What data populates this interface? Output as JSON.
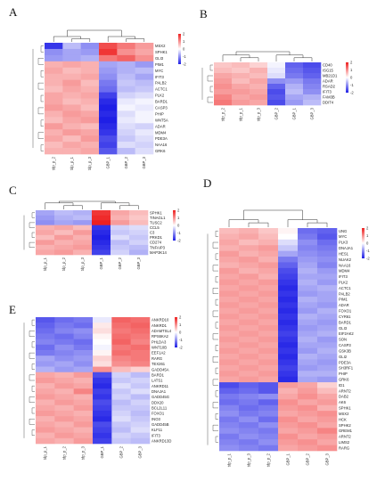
{
  "chart_data": [
    {
      "type": "heatmap",
      "panel_label": "A",
      "samples": [
        "tdp_p_2",
        "tdp_p_1",
        "tdp_p_3",
        "GBP_1",
        "GBP_2",
        "GBP_3"
      ],
      "genes": [
        "MSX2",
        "SPHK1",
        "GLI3",
        "PIM1",
        "MYC",
        "IFIT3",
        "PALB2",
        "ACTC1",
        "PLK2",
        "BARD1",
        "CASP3",
        "PHIP",
        "WNT5A",
        "ADAR",
        "MDM4",
        "PDE3A",
        "NAA16",
        "GRK6"
      ],
      "values": [
        [
          -1.8,
          -0.6,
          -1.0,
          1.6,
          1.2,
          0.9
        ],
        [
          -1.0,
          -0.8,
          -0.9,
          1.8,
          1.0,
          0.8
        ],
        [
          -0.9,
          -0.8,
          -0.7,
          1.2,
          1.4,
          1.0
        ],
        [
          0.7,
          0.8,
          0.7,
          -0.8,
          -0.7,
          -0.9
        ],
        [
          0.8,
          0.6,
          0.7,
          -0.9,
          -0.7,
          -0.6
        ],
        [
          0.7,
          0.7,
          0.8,
          -1.0,
          -0.6,
          -0.8
        ],
        [
          0.7,
          0.9,
          0.6,
          -1.2,
          -0.5,
          -0.6
        ],
        [
          0.6,
          0.8,
          0.7,
          -1.3,
          -0.6,
          -0.5
        ],
        [
          0.8,
          0.7,
          0.8,
          -1.7,
          -0.4,
          -0.3
        ],
        [
          0.8,
          0.6,
          0.7,
          -1.9,
          -0.2,
          -0.1
        ],
        [
          0.9,
          0.8,
          0.6,
          -2.0,
          -0.1,
          -0.2
        ],
        [
          0.7,
          0.9,
          0.8,
          -1.9,
          -0.3,
          -0.1
        ],
        [
          0.6,
          0.8,
          0.9,
          -2.0,
          -0.2,
          -0.1
        ],
        [
          0.9,
          0.7,
          0.6,
          -1.9,
          -0.3,
          -0.4
        ],
        [
          0.7,
          0.9,
          0.8,
          -1.8,
          -0.4,
          -0.2
        ],
        [
          0.8,
          0.6,
          0.9,
          -1.6,
          -0.5,
          -0.3
        ],
        [
          0.6,
          0.8,
          0.7,
          -1.7,
          -0.3,
          -0.4
        ],
        [
          0.7,
          0.7,
          0.8,
          -1.5,
          -0.6,
          -0.3
        ]
      ],
      "color_scale": {
        "min": -2,
        "max": 2,
        "ticks": [
          2,
          1,
          0,
          -1,
          -2
        ],
        "low": "#1f1fe6",
        "mid": "#ffffff",
        "high": "#ee2020"
      }
    },
    {
      "type": "heatmap",
      "panel_label": "B",
      "samples": [
        "tdp_p_2",
        "tdp_p_1",
        "tdp_p_3",
        "GBP_2",
        "GBP_1",
        "GBP_3"
      ],
      "genes": [
        "CD40",
        "ISG15",
        "MB21D1",
        "ADAR",
        "RSAD2",
        "IFIT3",
        "FAM3B",
        "DDIT4"
      ],
      "values": [
        [
          0.5,
          0.6,
          0.4,
          -0.1,
          -1.4,
          -1.6
        ],
        [
          0.6,
          0.5,
          0.7,
          -0.2,
          -1.3,
          -1.5
        ],
        [
          0.8,
          0.7,
          0.6,
          -0.3,
          -1.2,
          -1.4
        ],
        [
          0.9,
          0.6,
          0.8,
          -1.0,
          -0.9,
          -1.2
        ],
        [
          1.0,
          0.8,
          0.7,
          -1.4,
          -0.7,
          -1.1
        ],
        [
          0.9,
          0.9,
          0.8,
          -1.6,
          -0.6,
          -1.0
        ],
        [
          1.1,
          0.8,
          0.9,
          -1.5,
          -0.8,
          -0.7
        ],
        [
          1.2,
          0.9,
          0.8,
          -1.6,
          -0.9,
          -0.6
        ]
      ],
      "color_scale": {
        "min": -2,
        "max": 2,
        "ticks": [
          2,
          1,
          0,
          -1,
          -2
        ],
        "low": "#1f1fe6",
        "mid": "#ffffff",
        "high": "#ee2020"
      }
    },
    {
      "type": "heatmap",
      "panel_label": "C",
      "samples": [
        "tdp_p_1",
        "tdp_p_2",
        "tdp_p_3",
        "GBP_1",
        "GBP_2",
        "GBP_3"
      ],
      "genes": [
        "SPHK1",
        "TINAGL1",
        "TUSC2",
        "CCL5",
        "C3",
        "PRKD1",
        "CD274",
        "TNFAIP3",
        "MAP3K14"
      ],
      "values": [
        [
          -0.8,
          -0.6,
          -0.7,
          1.8,
          0.8,
          0.6
        ],
        [
          -0.9,
          -0.7,
          -0.6,
          1.9,
          0.7,
          0.5
        ],
        [
          -1.0,
          -0.8,
          -0.9,
          2.0,
          0.9,
          0.6
        ],
        [
          0.7,
          0.8,
          0.6,
          -1.8,
          -0.4,
          -0.3
        ],
        [
          0.8,
          0.6,
          0.9,
          -1.9,
          -0.5,
          -0.4
        ],
        [
          0.6,
          0.9,
          0.7,
          -2.0,
          -0.3,
          -0.5
        ],
        [
          0.9,
          0.7,
          0.8,
          -1.9,
          -0.6,
          -0.4
        ],
        [
          0.7,
          0.8,
          0.9,
          -1.8,
          -0.5,
          -0.6
        ],
        [
          0.8,
          0.9,
          0.7,
          -1.7,
          -0.4,
          -0.7
        ]
      ],
      "color_scale": {
        "min": -2,
        "max": 2,
        "ticks": [
          2,
          1,
          0,
          -1,
          -2
        ],
        "low": "#1f1fe6",
        "mid": "#ffffff",
        "high": "#ee2020"
      }
    },
    {
      "type": "heatmap",
      "panel_label": "D",
      "samples": [
        "tdp_p_1",
        "tdp_p_3",
        "tdp_p_2",
        "GBP_1",
        "GBP_2",
        "GBP_3"
      ],
      "genes": [
        "UNG",
        "MYC",
        "PLK3",
        "DNAJA1",
        "HES1",
        "NUAK2",
        "NAA16",
        "MDM4",
        "IFIT3",
        "PLK2",
        "ACTC1",
        "PALB2",
        "PIM1",
        "ADAR",
        "FOXO1",
        "CYR61",
        "BARD1",
        "GLI3",
        "EIF2AK2",
        "SON",
        "CASP3",
        "GSK3B",
        "GLI2",
        "PDE3A",
        "SH3RF1",
        "PHIP",
        "GRK6",
        "ID1",
        "ARNT2",
        "DAB2",
        "AK6",
        "SPHK1",
        "MSX2",
        "HCK",
        "SPHK2",
        "GREM1",
        "ARNT2",
        "LIMS2",
        "RARG"
      ],
      "values": [
        [
          0.6,
          0.7,
          0.5,
          0.1,
          -1.3,
          -1.4
        ],
        [
          0.7,
          0.8,
          0.6,
          0.0,
          -1.2,
          -1.5
        ],
        [
          0.8,
          0.6,
          0.7,
          -0.3,
          -1.0,
          -1.3
        ],
        [
          0.7,
          0.8,
          0.9,
          -0.5,
          -1.1,
          -1.2
        ],
        [
          0.9,
          0.7,
          0.8,
          -0.8,
          -1.0,
          -1.1
        ],
        [
          0.8,
          0.9,
          0.7,
          -1.2,
          -0.9,
          -1.0
        ],
        [
          0.7,
          0.8,
          0.9,
          -1.4,
          -0.8,
          -1.1
        ],
        [
          0.9,
          0.7,
          0.8,
          -1.6,
          -0.7,
          -0.9
        ],
        [
          0.8,
          0.9,
          0.7,
          -1.7,
          -0.8,
          -0.8
        ],
        [
          0.9,
          0.8,
          0.9,
          -1.8,
          -0.7,
          -0.9
        ],
        [
          0.8,
          0.9,
          0.8,
          -1.9,
          -0.8,
          -0.7
        ],
        [
          0.9,
          0.8,
          0.9,
          -1.8,
          -0.9,
          -0.8
        ],
        [
          0.8,
          0.9,
          0.8,
          -1.9,
          -0.7,
          -0.8
        ],
        [
          0.9,
          0.8,
          0.9,
          -1.8,
          -0.8,
          -0.9
        ],
        [
          0.8,
          0.9,
          0.8,
          -1.9,
          -0.9,
          -0.7
        ],
        [
          0.9,
          0.8,
          0.9,
          -1.8,
          -0.7,
          -0.8
        ],
        [
          0.8,
          0.9,
          0.8,
          -1.9,
          -0.8,
          -0.9
        ],
        [
          0.9,
          0.8,
          0.9,
          -1.8,
          -0.9,
          -0.8
        ],
        [
          0.8,
          0.9,
          0.8,
          -1.7,
          -0.8,
          -0.7
        ],
        [
          0.9,
          0.8,
          0.9,
          -1.8,
          -0.7,
          -0.9
        ],
        [
          0.8,
          0.9,
          0.8,
          -1.9,
          -0.8,
          -0.8
        ],
        [
          0.9,
          0.8,
          0.9,
          -1.8,
          -0.9,
          -0.7
        ],
        [
          0.8,
          0.9,
          0.8,
          -1.9,
          -0.7,
          -0.8
        ],
        [
          0.9,
          0.8,
          0.9,
          -1.8,
          -0.8,
          -0.9
        ],
        [
          0.8,
          0.9,
          0.8,
          -1.7,
          -0.9,
          -0.8
        ],
        [
          0.9,
          0.8,
          0.9,
          -1.8,
          -0.7,
          -0.7
        ],
        [
          0.8,
          0.9,
          0.8,
          -1.9,
          -0.8,
          -0.9
        ],
        [
          -1.6,
          -1.4,
          -1.5,
          0.9,
          0.8,
          0.4
        ],
        [
          -1.4,
          -1.3,
          -1.5,
          0.7,
          0.9,
          0.6
        ],
        [
          -1.2,
          -1.1,
          -1.0,
          0.8,
          1.0,
          0.8
        ],
        [
          -1.3,
          -1.2,
          -1.4,
          1.0,
          0.8,
          0.9
        ],
        [
          -1.1,
          -1.3,
          -1.2,
          0.9,
          1.0,
          0.7
        ],
        [
          -1.0,
          -1.2,
          -1.1,
          0.8,
          0.9,
          1.0
        ],
        [
          -1.2,
          -1.0,
          -1.3,
          1.0,
          0.8,
          0.9
        ],
        [
          -1.1,
          -1.2,
          -1.0,
          0.9,
          1.0,
          0.8
        ],
        [
          -1.0,
          -1.1,
          -1.2,
          0.8,
          0.9,
          1.1
        ],
        [
          -1.2,
          -1.0,
          -1.1,
          1.0,
          0.8,
          0.9
        ],
        [
          -1.1,
          -1.2,
          -1.0,
          0.9,
          1.0,
          0.8
        ],
        [
          -1.0,
          -1.1,
          -1.2,
          0.8,
          0.9,
          1.0
        ]
      ],
      "color_scale": {
        "min": -2,
        "max": 2,
        "ticks": [
          2,
          1,
          0,
          -1,
          -2
        ],
        "low": "#1f1fe6",
        "mid": "#ffffff",
        "high": "#ee2020"
      }
    },
    {
      "type": "heatmap",
      "panel_label": "E",
      "samples": [
        "tdp_p_1",
        "tdp_p_2",
        "tdp_p_3",
        "GBP_1",
        "GBP_2",
        "GBP_3"
      ],
      "genes": [
        "ANKRD10",
        "ANKRD1",
        "ADAMTSL4",
        "RPS6KA2",
        "PHLDA3",
        "WNT10B",
        "EEF1A2",
        "RARG",
        "TEX261",
        "GADD45A",
        "BARD1",
        "LATS1",
        "ANKRD11",
        "DNAJA1",
        "GADD45G",
        "DDX20",
        "BCL2L11",
        "FOXO1",
        "INO3",
        "GADD45B",
        "KLF11",
        "IFIT3",
        "ANKRD13D"
      ],
      "values": [
        [
          -1.5,
          -1.3,
          -1.2,
          -0.2,
          1.4,
          1.3
        ],
        [
          -1.4,
          -1.2,
          -1.3,
          0.2,
          1.3,
          1.4
        ],
        [
          -1.3,
          -1.1,
          -1.0,
          0.3,
          1.2,
          1.3
        ],
        [
          -1.2,
          -1.3,
          -1.1,
          0.1,
          1.3,
          1.2
        ],
        [
          -1.1,
          -1.2,
          -1.3,
          0.0,
          1.4,
          1.1
        ],
        [
          -1.3,
          -1.0,
          -1.2,
          -0.1,
          1.2,
          1.3
        ],
        [
          -1.2,
          -1.1,
          -1.0,
          0.1,
          1.3,
          1.2
        ],
        [
          -0.8,
          -1.0,
          -0.9,
          0.4,
          1.1,
          1.2
        ],
        [
          -0.9,
          -0.8,
          -1.0,
          0.3,
          1.0,
          1.1
        ],
        [
          -0.7,
          -0.9,
          -0.8,
          1.0,
          0.6,
          0.4
        ],
        [
          0.8,
          0.7,
          0.9,
          -1.6,
          -0.4,
          -0.6
        ],
        [
          0.9,
          0.8,
          0.7,
          -1.8,
          -0.5,
          -0.4
        ],
        [
          0.7,
          0.9,
          0.8,
          -1.9,
          -0.3,
          -0.5
        ],
        [
          0.8,
          0.7,
          1.1,
          -1.7,
          -0.5,
          -0.3
        ],
        [
          0.9,
          0.8,
          0.7,
          -1.8,
          -0.4,
          -0.6
        ],
        [
          0.7,
          0.9,
          0.8,
          -1.6,
          -0.6,
          -0.4
        ],
        [
          0.8,
          0.7,
          0.9,
          -1.7,
          -0.5,
          -0.5
        ],
        [
          0.9,
          0.8,
          0.7,
          -1.8,
          -0.4,
          -0.6
        ],
        [
          0.7,
          0.9,
          0.8,
          -1.9,
          -0.3,
          -0.5
        ],
        [
          0.8,
          0.7,
          0.9,
          -1.6,
          -0.5,
          -0.4
        ],
        [
          0.9,
          0.8,
          0.7,
          -1.7,
          -0.6,
          -0.3
        ],
        [
          0.7,
          0.9,
          0.8,
          -1.8,
          -0.4,
          -0.5
        ],
        [
          0.8,
          0.7,
          0.9,
          -1.7,
          -0.5,
          -0.6
        ]
      ],
      "color_scale": {
        "min": -2,
        "max": 2,
        "ticks": [
          2,
          1,
          0,
          -1,
          -2
        ],
        "low": "#1f1fe6",
        "mid": "#ffffff",
        "high": "#ee2020"
      }
    }
  ]
}
